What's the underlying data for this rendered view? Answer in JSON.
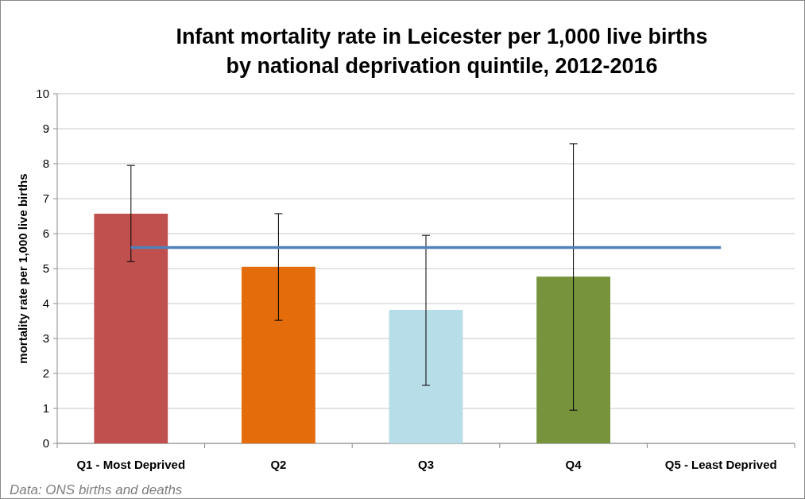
{
  "chart_data": {
    "type": "bar",
    "title": "Infant mortality rate in Leicester per 1,000 live births by national deprivation quintile, 2012-2016",
    "ylabel": "mortality rate per 1,000 live births",
    "categories": [
      "Q1 - Most Deprived",
      "Q2",
      "Q3",
      "Q4",
      "Q5 - Least Deprived"
    ],
    "series": [
      {
        "colors": [
          "#c0504d",
          "#e46c0a",
          "#b7dde8",
          "#77933c",
          null
        ],
        "values": [
          6.57,
          5.05,
          3.82,
          4.77,
          null
        ],
        "errors": [
          [
            5.2,
            7.95
          ],
          [
            3.52,
            6.57
          ],
          [
            1.66,
            5.95
          ],
          [
            0.95,
            8.57
          ],
          null
        ]
      },
      {
        "type": "line",
        "color": "#4f81bd",
        "values": [
          5.6,
          5.6,
          5.6,
          5.6,
          5.6
        ]
      }
    ],
    "ylim": [
      0,
      10
    ],
    "yticks": [
      0,
      1,
      2,
      3,
      4,
      5,
      6,
      7,
      8,
      9,
      10
    ],
    "grid": "y",
    "marker": "none",
    "line_style": "solid",
    "annotations": [
      "Data: ONS births and deaths"
    ]
  }
}
